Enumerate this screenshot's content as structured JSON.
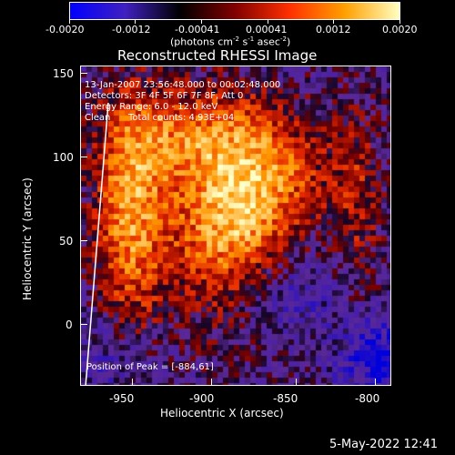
{
  "colorbar": {
    "tick_labels": [
      "-0.0020",
      "-0.0012",
      "-0.00041",
      "0.00041",
      "0.0012",
      "0.0020"
    ],
    "unit_prefix": "(photons cm",
    "unit_exp1": "-2",
    "unit_mid": " s",
    "unit_exp2": "-1",
    "unit_mid2": " asec",
    "unit_exp3": "-2",
    "unit_suffix": ")",
    "colors": [
      "#0000ff",
      "#4020c0",
      "#000000",
      "#800000",
      "#ff3000",
      "#ffa000",
      "#ffffc0"
    ]
  },
  "image": {
    "title": "Reconstructed RHESSI Image",
    "time_range": "13-Jan-2007 23:56:48.000 to 00:02:48.000",
    "detectors": "Detectors: 3F 4F 5F 6F 7F 8F, Att 0",
    "energy_range": "Energy Range: 6.0 - 12.0 keV",
    "method": "Clean",
    "total_counts": "Total counts: 4.93E+04",
    "peak_position": "Position of Peak = [-884,61]"
  },
  "axes": {
    "xlabel": "Heliocentric X (arcsec)",
    "ylabel": "Heliocentric Y (arcsec)",
    "x_ticks": [
      "-950",
      "-900",
      "-850",
      "-800"
    ],
    "y_ticks": [
      "150",
      "100",
      "50",
      "0"
    ],
    "xlim": [
      -990,
      -795
    ],
    "ylim": [
      -35,
      155
    ]
  },
  "footer": {
    "timestamp": "5-May-2022 12:41"
  }
}
